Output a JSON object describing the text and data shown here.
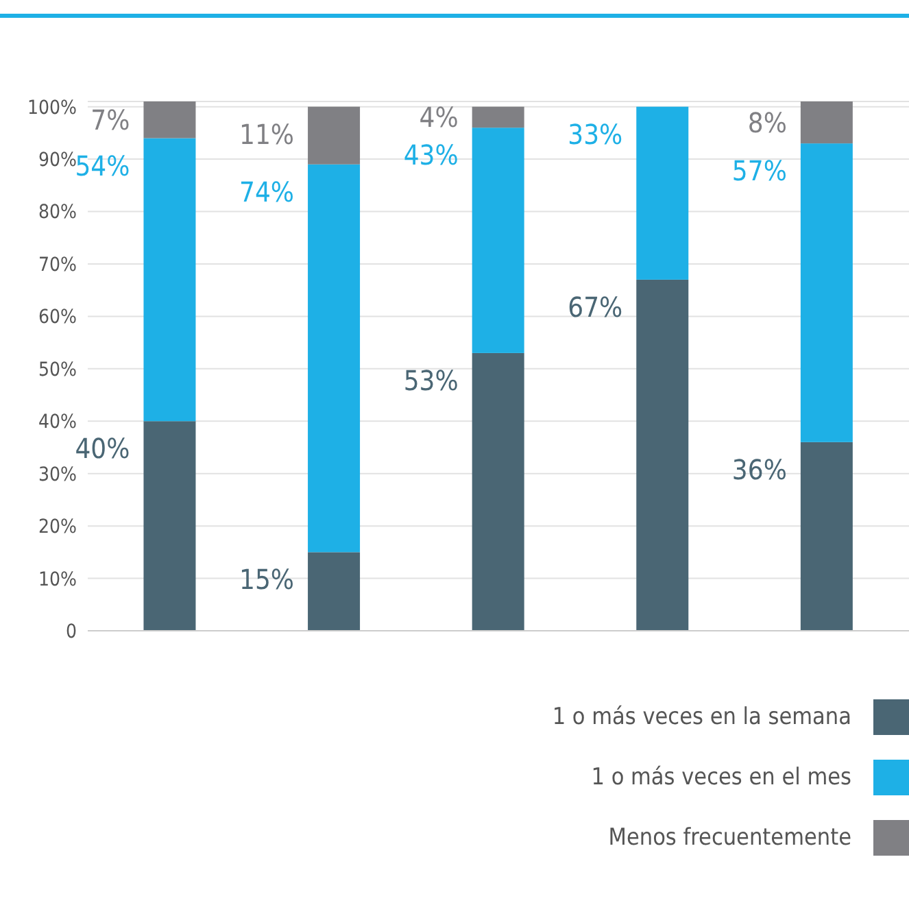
{
  "chart_data": {
    "type": "bar",
    "stacked": true,
    "categories": [
      null,
      null,
      null,
      null,
      null
    ],
    "series": [
      {
        "name": "1 o más veces en la semana",
        "color": "#4a6674",
        "values": [
          40,
          15,
          53,
          67,
          36
        ]
      },
      {
        "name": "1 o más veces en el mes",
        "color": "#1eb0e6",
        "values": [
          54,
          74,
          43,
          33,
          57
        ]
      },
      {
        "name": "Menos frecuentemente",
        "color": "#808084",
        "values": [
          7,
          11,
          4,
          null,
          8
        ]
      }
    ],
    "ylim": [
      0,
      101
    ],
    "yticks": [
      {
        "value": 0,
        "label": "0"
      },
      {
        "value": 10,
        "label": "10%"
      },
      {
        "value": 20,
        "label": "20%"
      },
      {
        "value": 30,
        "label": "30%"
      },
      {
        "value": 40,
        "label": "40%"
      },
      {
        "value": 50,
        "label": "50%"
      },
      {
        "value": 60,
        "label": "60%"
      },
      {
        "value": 70,
        "label": "70%"
      },
      {
        "value": 80,
        "label": "80%"
      },
      {
        "value": 90,
        "label": "90%"
      },
      {
        "value": 100,
        "label": "100%"
      }
    ],
    "grid": "y",
    "legend": "bottom right",
    "value_labels": [
      [
        "40%",
        "15%",
        "53%",
        "67%",
        "36%"
      ],
      [
        "54%",
        "74%",
        "43%",
        "33%",
        "57%"
      ],
      [
        "7%",
        "11%",
        "4%",
        null,
        "8%"
      ]
    ]
  }
}
